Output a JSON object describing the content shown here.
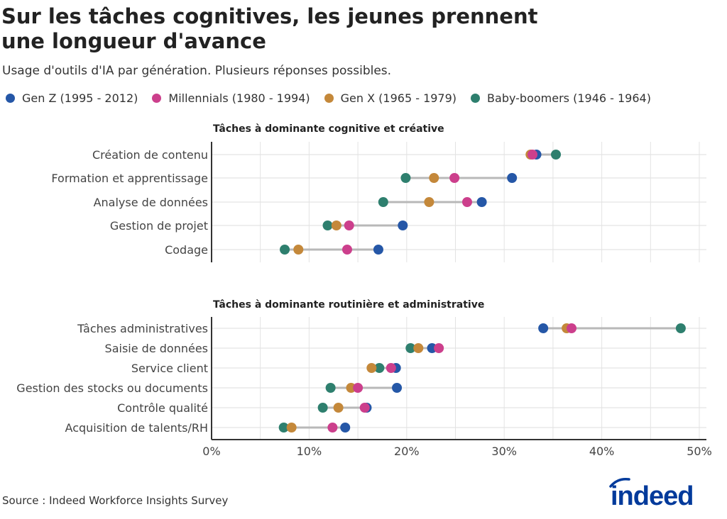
{
  "title": "Sur les tâches cognitives, les jeunes prennent une longueur d'avance",
  "subtitle": "Usage d'outils d'IA par génération. Plusieurs réponses possibles.",
  "source": "Source : Indeed Workforce Insights Survey",
  "logo_text": "indeed",
  "colors": {
    "gen_z": "#2557a7",
    "millennials": "#cc3f8c",
    "gen_x": "#c4883a",
    "boomers": "#2e7f6e",
    "logo": "#003a9b"
  },
  "legend": [
    {
      "key": "gen_z",
      "label": "Gen Z (1995 - 2012)"
    },
    {
      "key": "millennials",
      "label": "Millennials (1980 - 1994)"
    },
    {
      "key": "gen_x",
      "label": "Gen X (1965 - 1979)"
    },
    {
      "key": "boomers",
      "label": "Baby-boomers (1946 - 1964)"
    }
  ],
  "chart_data": [
    {
      "type": "scatter",
      "subtype": "dumbbell",
      "title": "Tâches à dominante cognitive et créative",
      "xlim": [
        0,
        50
      ],
      "categories": [
        "Création de contenu",
        "Formation et apprentissage",
        "Analyse de données",
        "Gestion de projet",
        "Codage"
      ],
      "series": [
        {
          "name": "Gen Z (1995 - 2012)",
          "key": "gen_z",
          "values": [
            33.3,
            30.8,
            27.7,
            19.6,
            17.1
          ]
        },
        {
          "name": "Millennials (1980 - 1994)",
          "key": "millennials",
          "values": [
            32.9,
            24.9,
            26.2,
            14.1,
            13.9
          ]
        },
        {
          "name": "Gen X (1965 - 1979)",
          "key": "gen_x",
          "values": [
            32.7,
            22.8,
            22.3,
            12.8,
            8.9
          ]
        },
        {
          "name": "Baby-boomers (1946 - 1964)",
          "key": "boomers",
          "values": [
            35.3,
            19.9,
            17.6,
            11.9,
            7.5
          ]
        }
      ]
    },
    {
      "type": "scatter",
      "subtype": "dumbbell",
      "title": "Tâches à dominante routinière et administrative",
      "xlim": [
        0,
        50
      ],
      "x_ticks": [
        "0%",
        "10%",
        "20%",
        "30%",
        "40%",
        "50%"
      ],
      "categories": [
        "Tâches administratives",
        "Saisie de données",
        "Service client",
        "Gestion des stocks ou documents",
        "Contrôle qualité",
        "Acquisition de talents/RH"
      ],
      "series": [
        {
          "name": "Gen Z (1995 - 2012)",
          "key": "gen_z",
          "values": [
            34.0,
            22.6,
            18.9,
            19.0,
            15.9,
            13.7
          ]
        },
        {
          "name": "Millennials (1980 - 1994)",
          "key": "millennials",
          "values": [
            36.9,
            23.3,
            18.4,
            15.0,
            15.7,
            12.4
          ]
        },
        {
          "name": "Gen X (1965 - 1979)",
          "key": "gen_x",
          "values": [
            36.4,
            21.2,
            16.4,
            14.3,
            13.0,
            8.2
          ]
        },
        {
          "name": "Baby-boomers (1946 - 1964)",
          "key": "boomers",
          "values": [
            48.1,
            20.4,
            17.2,
            12.2,
            11.4,
            7.4
          ]
        }
      ]
    }
  ]
}
